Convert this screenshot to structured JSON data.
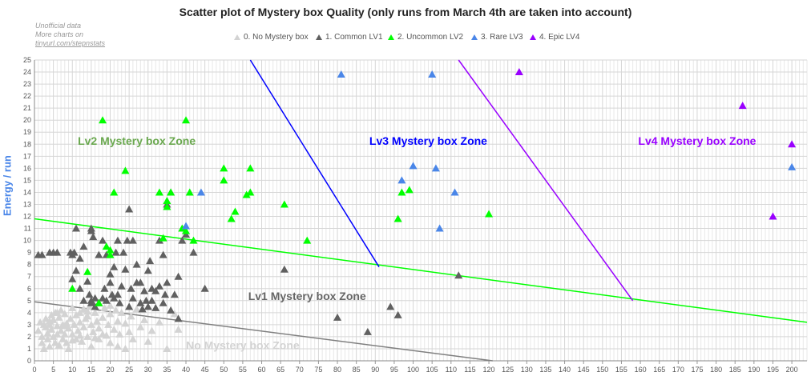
{
  "chart_data": {
    "type": "scatter",
    "title": "Scatter plot of Mystery box Quality (only runs from March 4th are taken into account)",
    "xlabel": "",
    "ylabel": "Energy / run",
    "xlim": [
      0,
      204
    ],
    "ylim": [
      0,
      25
    ],
    "x_tick_step": 1,
    "x_tick_label_step": 5,
    "y_tick_step": 1,
    "grid": true,
    "legend_position": "top-center",
    "credit": [
      "Unofficial data",
      "More charts on",
      "tinyurl.com/stepnstats"
    ],
    "series": [
      {
        "name": "0. No Mystery box",
        "color": "#d3d3d3",
        "points": [
          [
            1,
            2.5
          ],
          [
            1.5,
            3.2
          ],
          [
            2,
            2
          ],
          [
            2,
            1.5
          ],
          [
            2.5,
            3
          ],
          [
            2.5,
            1
          ],
          [
            3,
            2.8
          ],
          [
            3,
            3.5
          ],
          [
            3.5,
            1.8
          ],
          [
            3.5,
            2.3
          ],
          [
            4,
            3
          ],
          [
            4,
            1.2
          ],
          [
            4.5,
            2.6
          ],
          [
            4.5,
            3.8
          ],
          [
            5,
            2
          ],
          [
            5,
            3.4
          ],
          [
            5.5,
            1.5
          ],
          [
            5.5,
            4
          ],
          [
            6,
            2.9
          ],
          [
            6,
            2.2
          ],
          [
            6.5,
            3.6
          ],
          [
            6.5,
            1.3
          ],
          [
            7,
            2.5
          ],
          [
            7,
            4.2
          ],
          [
            7.5,
            3
          ],
          [
            7.5,
            1.8
          ],
          [
            8,
            2.2
          ],
          [
            8,
            3.9
          ],
          [
            8.5,
            1.5
          ],
          [
            8.5,
            3.1
          ],
          [
            9,
            2.7
          ],
          [
            9,
            1
          ],
          [
            9.5,
            3.5
          ],
          [
            10,
            2.2
          ],
          [
            10,
            4.4
          ],
          [
            10.5,
            3
          ],
          [
            11,
            1.8
          ],
          [
            11,
            3.8
          ],
          [
            11.5,
            2.5
          ],
          [
            12,
            3.2
          ],
          [
            12,
            4
          ],
          [
            12.5,
            1.6
          ],
          [
            13,
            2.8
          ],
          [
            13,
            4.3
          ],
          [
            13.5,
            3.5
          ],
          [
            14,
            2
          ],
          [
            14,
            3.7
          ],
          [
            14.5,
            4.5
          ],
          [
            15,
            1.2
          ],
          [
            15,
            3
          ],
          [
            15.5,
            2.4
          ],
          [
            16,
            4
          ],
          [
            16.5,
            3.3
          ],
          [
            17,
            1.8
          ],
          [
            17,
            2.7
          ],
          [
            18,
            3.6
          ],
          [
            18.5,
            4.4
          ],
          [
            19,
            2.1
          ],
          [
            19.5,
            3
          ],
          [
            20,
            1.5
          ],
          [
            20,
            3.9
          ],
          [
            21,
            2.6
          ],
          [
            21.5,
            4.2
          ],
          [
            22,
            3.3
          ],
          [
            22.5,
            2.2
          ],
          [
            23,
            4
          ],
          [
            24,
            1
          ],
          [
            24,
            3.1
          ],
          [
            25,
            2.4
          ],
          [
            25.5,
            3.7
          ],
          [
            26,
            1.8
          ],
          [
            27,
            4.3
          ],
          [
            28,
            2.8
          ],
          [
            29,
            3.4
          ],
          [
            30,
            1.6
          ],
          [
            31,
            2.5
          ],
          [
            33,
            3.2
          ],
          [
            35,
            1
          ],
          [
            37,
            3.9
          ],
          [
            38,
            2.6
          ],
          [
            4,
            3.3
          ],
          [
            6,
            4
          ],
          [
            8,
            2.9
          ],
          [
            10,
            1.7
          ],
          [
            12,
            2.1
          ],
          [
            14,
            4.1
          ],
          [
            16,
            1.9
          ],
          [
            18,
            2.2
          ],
          [
            20,
            4.6
          ],
          [
            22,
            1.2
          ]
        ]
      },
      {
        "name": "1. Common LV1",
        "color": "#606060",
        "points": [
          [
            1,
            8.8
          ],
          [
            2,
            8.8
          ],
          [
            4,
            9
          ],
          [
            5,
            9
          ],
          [
            6,
            9
          ],
          [
            9.5,
            9
          ],
          [
            10,
            8.8
          ],
          [
            10.5,
            9
          ],
          [
            10,
            6.8
          ],
          [
            11,
            11
          ],
          [
            11,
            7.5
          ],
          [
            12,
            8.5
          ],
          [
            12,
            6
          ],
          [
            13,
            5
          ],
          [
            13,
            9.5
          ],
          [
            14,
            6.6
          ],
          [
            14.5,
            5.5
          ],
          [
            15,
            10.8
          ],
          [
            15,
            11
          ],
          [
            15,
            5
          ],
          [
            15,
            4.8
          ],
          [
            15.5,
            10.3
          ],
          [
            16,
            5.2
          ],
          [
            16,
            4.5
          ],
          [
            17,
            4.8
          ],
          [
            17,
            8.8
          ],
          [
            18,
            10
          ],
          [
            18,
            5.2
          ],
          [
            18.5,
            6
          ],
          [
            19,
            8.8
          ],
          [
            19,
            5
          ],
          [
            20,
            7.2
          ],
          [
            20,
            6.5
          ],
          [
            20.5,
            5.5
          ],
          [
            21,
            5.2
          ],
          [
            21,
            7.8
          ],
          [
            21.5,
            9
          ],
          [
            22,
            10
          ],
          [
            22,
            5.5
          ],
          [
            22.5,
            4.8
          ],
          [
            23,
            6.2
          ],
          [
            23.5,
            9
          ],
          [
            24,
            7.6
          ],
          [
            24.5,
            10
          ],
          [
            25,
            12.6
          ],
          [
            25,
            4.5
          ],
          [
            25.5,
            6
          ],
          [
            26,
            10
          ],
          [
            26,
            5.2
          ],
          [
            27,
            8
          ],
          [
            27,
            6.5
          ],
          [
            28,
            6.5
          ],
          [
            28,
            4.8
          ],
          [
            28.5,
            4.3
          ],
          [
            29,
            5.8
          ],
          [
            29.5,
            5
          ],
          [
            30,
            7.5
          ],
          [
            30,
            4.5
          ],
          [
            30.5,
            8.3
          ],
          [
            31,
            6
          ],
          [
            31,
            5
          ],
          [
            32,
            5.8
          ],
          [
            32,
            4.4
          ],
          [
            33,
            10
          ],
          [
            33,
            6.2
          ],
          [
            34,
            8.8
          ],
          [
            34,
            4.8
          ],
          [
            34.5,
            5.5
          ],
          [
            35,
            13
          ],
          [
            35,
            6.5
          ],
          [
            36,
            14
          ],
          [
            36,
            4.2
          ],
          [
            37,
            5.5
          ],
          [
            38,
            7
          ],
          [
            38,
            3.5
          ],
          [
            39,
            10
          ],
          [
            40,
            10.5
          ],
          [
            42,
            9
          ],
          [
            45,
            6
          ],
          [
            66,
            7.6
          ],
          [
            80,
            3.6
          ],
          [
            88,
            2.4
          ],
          [
            94,
            4.5
          ],
          [
            96,
            3.8
          ],
          [
            112,
            7.1
          ]
        ]
      },
      {
        "name": "2. Uncommon LV2",
        "color": "#00ff00",
        "points": [
          [
            10,
            6
          ],
          [
            14,
            7.4
          ],
          [
            17,
            4.8
          ],
          [
            18,
            20
          ],
          [
            19,
            9.5
          ],
          [
            20,
            8.8
          ],
          [
            20,
            9.2
          ],
          [
            21,
            14
          ],
          [
            24,
            15.8
          ],
          [
            33,
            14
          ],
          [
            34,
            10.2
          ],
          [
            35,
            12.8
          ],
          [
            35,
            13.3
          ],
          [
            36,
            14
          ],
          [
            39,
            11
          ],
          [
            40,
            20
          ],
          [
            40,
            10.8
          ],
          [
            41,
            14
          ],
          [
            42,
            10
          ],
          [
            50,
            16
          ],
          [
            50,
            15
          ],
          [
            52,
            11.8
          ],
          [
            53,
            12.4
          ],
          [
            56,
            13.8
          ],
          [
            57,
            14
          ],
          [
            57,
            16
          ],
          [
            66,
            13
          ],
          [
            72,
            10
          ],
          [
            96,
            11.8
          ],
          [
            97,
            14
          ],
          [
            99,
            14.2
          ],
          [
            120,
            12.2
          ]
        ]
      },
      {
        "name": "3. Rare LV3",
        "color": "#4a86e8",
        "points": [
          [
            40,
            11.2
          ],
          [
            44,
            14
          ],
          [
            81,
            23.8
          ],
          [
            97,
            15
          ],
          [
            100,
            16.2
          ],
          [
            105,
            23.8
          ],
          [
            106,
            16
          ],
          [
            107,
            11
          ],
          [
            111,
            14
          ],
          [
            200,
            16.1
          ]
        ]
      },
      {
        "name": "4. Epic LV4",
        "color": "#9900ff",
        "points": [
          [
            128,
            24
          ],
          [
            187,
            21.2
          ],
          [
            195,
            12
          ],
          [
            200,
            18
          ]
        ]
      }
    ],
    "zone_lines": [
      {
        "name": "lv1-boundary",
        "color": "#808080",
        "points": [
          [
            0,
            4.9
          ],
          [
            121,
            0
          ]
        ]
      },
      {
        "name": "lv2-boundary",
        "color": "#00ff00",
        "points": [
          [
            0,
            11.8
          ],
          [
            204,
            3.2
          ]
        ]
      },
      {
        "name": "lv3-boundary",
        "color": "#0000ff",
        "points": [
          [
            57,
            25
          ],
          [
            91,
            7.8
          ]
        ]
      },
      {
        "name": "lv4-boundary",
        "color": "#9900ff",
        "points": [
          [
            112,
            25
          ],
          [
            158,
            5
          ]
        ]
      }
    ],
    "zone_labels": [
      {
        "text": "Lv2 Mystery box Zone",
        "color": "#6aa84f",
        "at": [
          27,
          18.3
        ]
      },
      {
        "text": "Lv3 Mystery box Zone",
        "color": "#0000ff",
        "at": [
          104,
          18.3
        ]
      },
      {
        "text": "Lv4 Mystery box Zone",
        "color": "#9900ff",
        "at": [
          175,
          18.3
        ]
      },
      {
        "text": "Lv1 Mystery box Zone",
        "color": "#666666",
        "at": [
          72,
          5.4
        ]
      },
      {
        "text": "No Mystery box Zone",
        "color": "#d3d3d3",
        "at": [
          55,
          1.3
        ]
      }
    ]
  }
}
